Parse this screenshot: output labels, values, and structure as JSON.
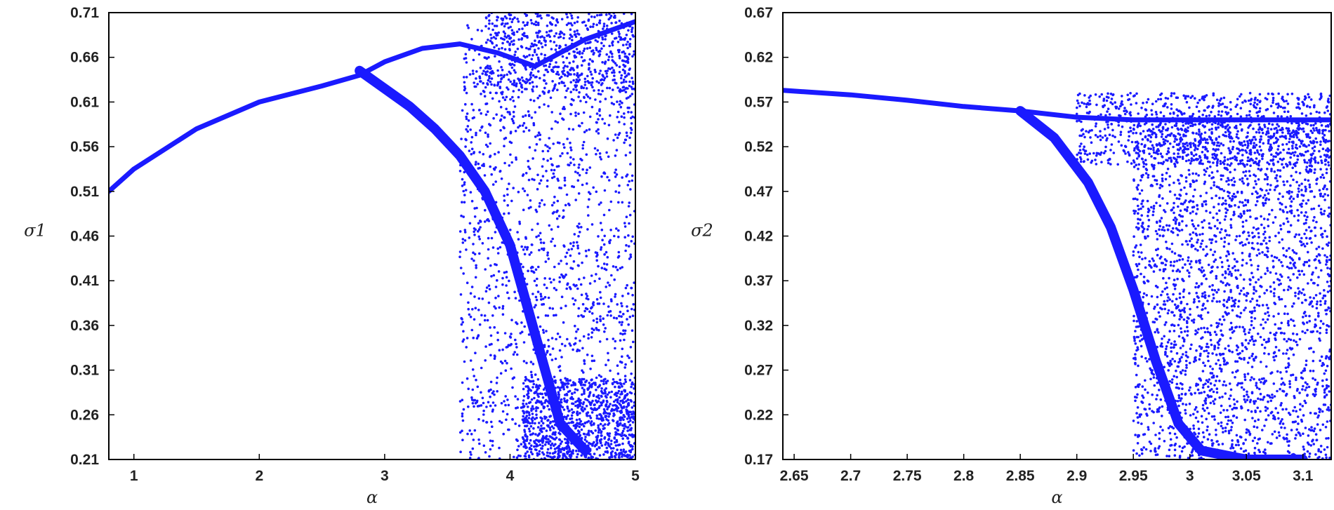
{
  "chart_data": [
    {
      "type": "scatter",
      "title": "",
      "xlabel": "α",
      "ylabel": "σ1",
      "xlim": [
        0.8,
        5
      ],
      "ylim": [
        0.21,
        0.71
      ],
      "xticks": [
        1,
        2,
        3,
        4,
        5
      ],
      "yticks": [
        0.21,
        0.26,
        0.31,
        0.36,
        0.41,
        0.46,
        0.51,
        0.56,
        0.61,
        0.66,
        0.71
      ],
      "grid": false,
      "legend": "none",
      "marker_color": "#1a1aff",
      "series": [
        {
          "x": [
            0.8,
            1.0,
            1.5,
            2.0,
            2.5,
            2.8,
            3.0,
            3.3,
            3.6,
            3.9,
            4.2,
            4.6,
            5.0
          ],
          "y": [
            0.51,
            0.535,
            0.58,
            0.61,
            0.628,
            0.64,
            0.655,
            0.67,
            0.675,
            0.665,
            0.65,
            0.68,
            0.7
          ]
        },
        {
          "x": [
            2.8,
            3.0,
            3.2,
            3.4,
            3.6,
            3.8,
            4.0,
            4.2,
            4.4,
            4.6
          ],
          "y": [
            0.645,
            0.625,
            0.605,
            0.58,
            0.55,
            0.51,
            0.45,
            0.35,
            0.25,
            0.22
          ]
        }
      ]
    },
    {
      "type": "scatter",
      "title": "",
      "xlabel": "α",
      "ylabel": "σ2",
      "xlim": [
        2.64,
        3.125
      ],
      "ylim": [
        0.17,
        0.67
      ],
      "xticks": [
        2.65,
        2.7,
        2.75,
        2.8,
        2.85,
        2.9,
        2.95,
        3,
        3.05,
        3.1
      ],
      "yticks": [
        0.17,
        0.22,
        0.27,
        0.32,
        0.37,
        0.42,
        0.47,
        0.52,
        0.57,
        0.62,
        0.67
      ],
      "grid": false,
      "legend": "none",
      "marker_color": "#1a1aff",
      "series": [
        {
          "x": [
            2.64,
            2.7,
            2.75,
            2.8,
            2.85,
            2.9,
            2.95,
            3.0,
            3.05,
            3.1,
            3.125
          ],
          "y": [
            0.583,
            0.578,
            0.572,
            0.565,
            0.56,
            0.553,
            0.55,
            0.55,
            0.55,
            0.55,
            0.55
          ]
        },
        {
          "x": [
            2.85,
            2.88,
            2.91,
            2.93,
            2.95,
            2.97,
            2.99,
            3.01,
            3.05,
            3.1
          ],
          "y": [
            0.56,
            0.53,
            0.48,
            0.43,
            0.36,
            0.28,
            0.21,
            0.18,
            0.17,
            0.17
          ]
        }
      ]
    }
  ]
}
